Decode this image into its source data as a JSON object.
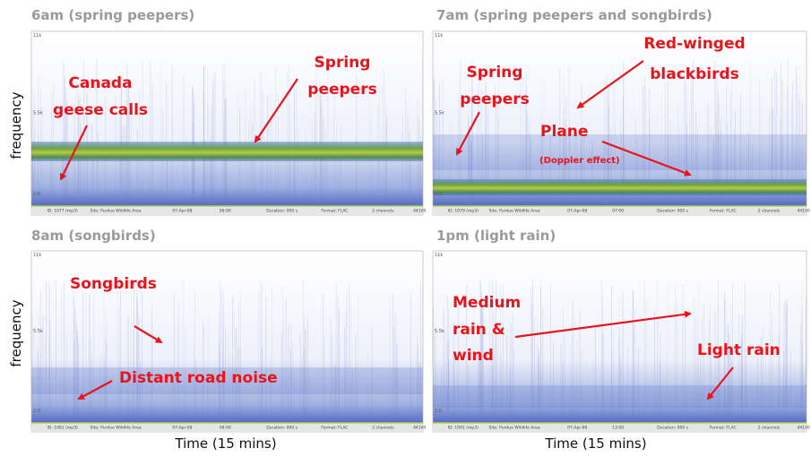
{
  "panels": [
    {
      "title": "6am (spring peepers)",
      "ticks": [
        "11k",
        "5.5k",
        "2.0"
      ],
      "annotations": [
        [
          "Canada",
          "geese calls"
        ],
        [
          "Spring",
          "peepers"
        ]
      ],
      "footer": [
        "ID: 1077 (mp3)",
        "Site: Purdue Wildlife Area",
        "07-Apr-08",
        "06:00",
        "Duration: 900 s",
        "Format: FLAC",
        "2 channels",
        "44100"
      ]
    },
    {
      "title": "7am (spring peepers and songbirds)",
      "ticks": [
        "11k",
        "5.5k",
        "2.0"
      ],
      "annotations": [
        [
          "Spring",
          "peepers"
        ],
        [
          "Red-winged",
          "blackbirds"
        ],
        [
          "Plane"
        ],
        [
          "(Doppler effect)"
        ]
      ],
      "footer": [
        "ID: 1079 (mp3)",
        "Site: Purdue Wildlife Area",
        "07-Apr-08",
        "07:00",
        "Duration: 900 s",
        "Format: FLAC",
        "2 channels",
        "44100"
      ]
    },
    {
      "title": "8am (songbirds)",
      "ticks": [
        "11k",
        "5.5k",
        "2.0"
      ],
      "annotations": [
        [
          "Songbirds"
        ],
        [
          "Distant road noise"
        ]
      ],
      "footer": [
        "ID: 1081 (mp3)",
        "Site: Purdue Wildlife Area",
        "07-Apr-08",
        "08:00",
        "Duration: 900 s",
        "Format: FLAC",
        "2 channels",
        "44100"
      ]
    },
    {
      "title": "1pm (light rain)",
      "ticks": [
        "11k",
        "5.5k",
        "2.0"
      ],
      "annotations": [
        [
          "Medium",
          "rain &",
          "wind"
        ],
        [
          "Light rain"
        ]
      ],
      "footer": [
        "ID: 1091 (mp3)",
        "Site: Purdue Wildlife Area",
        "07-Apr-08",
        "13:00",
        "Duration: 900 s",
        "Format: FLAC",
        "2 channels",
        "44100"
      ]
    }
  ],
  "y_axis_labels": [
    "frequency",
    "frequency"
  ],
  "x_axis_labels": [
    "Time (15 mins)",
    "Time (15 mins)"
  ]
}
